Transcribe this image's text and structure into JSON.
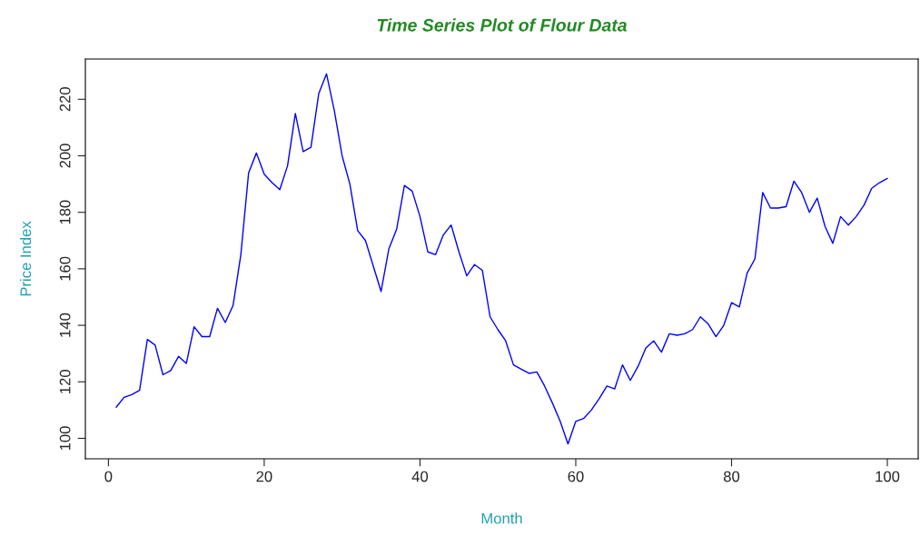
{
  "chart_data": {
    "type": "line",
    "title": "Time Series Plot of Flour Data",
    "xlabel": "Month",
    "ylabel": "Price Index",
    "x": [
      1,
      2,
      3,
      4,
      5,
      6,
      7,
      8,
      9,
      10,
      11,
      12,
      13,
      14,
      15,
      16,
      17,
      18,
      19,
      20,
      21,
      22,
      23,
      24,
      25,
      26,
      27,
      28,
      29,
      30,
      31,
      32,
      33,
      34,
      35,
      36,
      37,
      38,
      39,
      40,
      41,
      42,
      43,
      44,
      45,
      46,
      47,
      48,
      49,
      50,
      51,
      52,
      53,
      54,
      55,
      56,
      57,
      58,
      59,
      60,
      61,
      62,
      63,
      64,
      65,
      66,
      67,
      68,
      69,
      70,
      71,
      72,
      73,
      74,
      75,
      76,
      77,
      78,
      79,
      80,
      81,
      82,
      83,
      84,
      85,
      86,
      87,
      88,
      89,
      90,
      91,
      92,
      93,
      94,
      95,
      96,
      97,
      98,
      99,
      100
    ],
    "series": [
      {
        "color": "#0000ff",
        "values": [
          111,
          114.5,
          115.5,
          117,
          135,
          133,
          122.5,
          124,
          129,
          126.5,
          139.5,
          136,
          136,
          146,
          141,
          147,
          165,
          194,
          201,
          193.5,
          190.5,
          188,
          196.5,
          215,
          201.5,
          203,
          222,
          229,
          216,
          200,
          190,
          173.5,
          170,
          161,
          152,
          167,
          174,
          189.5,
          187.5,
          178.5,
          166,
          165,
          172,
          175.5,
          166,
          157.5,
          161.5,
          159.5,
          143,
          138.5,
          134.5,
          126,
          124.5,
          123,
          123.5,
          118.5,
          112.5,
          106,
          98,
          106,
          107,
          110,
          114,
          118.5,
          117.5,
          126,
          120.5,
          125.5,
          132,
          134.5,
          130.5,
          137,
          136.5,
          137,
          138.5,
          143,
          140.5,
          136,
          140,
          148,
          146.5,
          158.5,
          163.5,
          187,
          181.5,
          181.5,
          182,
          191,
          187,
          180,
          185,
          175,
          169,
          178.5,
          175.5,
          178.5,
          182.5,
          188.5,
          190.5,
          192
        ]
      }
    ],
    "xlim": [
      -2.96,
      103.96
    ],
    "ylim": [
      92.76,
      234.24
    ],
    "xticks": [
      0,
      20,
      40,
      60,
      80,
      100
    ],
    "yticks": [
      100,
      120,
      140,
      160,
      180,
      200,
      220
    ],
    "grid": false,
    "marker": "none",
    "line_style": "solid"
  }
}
